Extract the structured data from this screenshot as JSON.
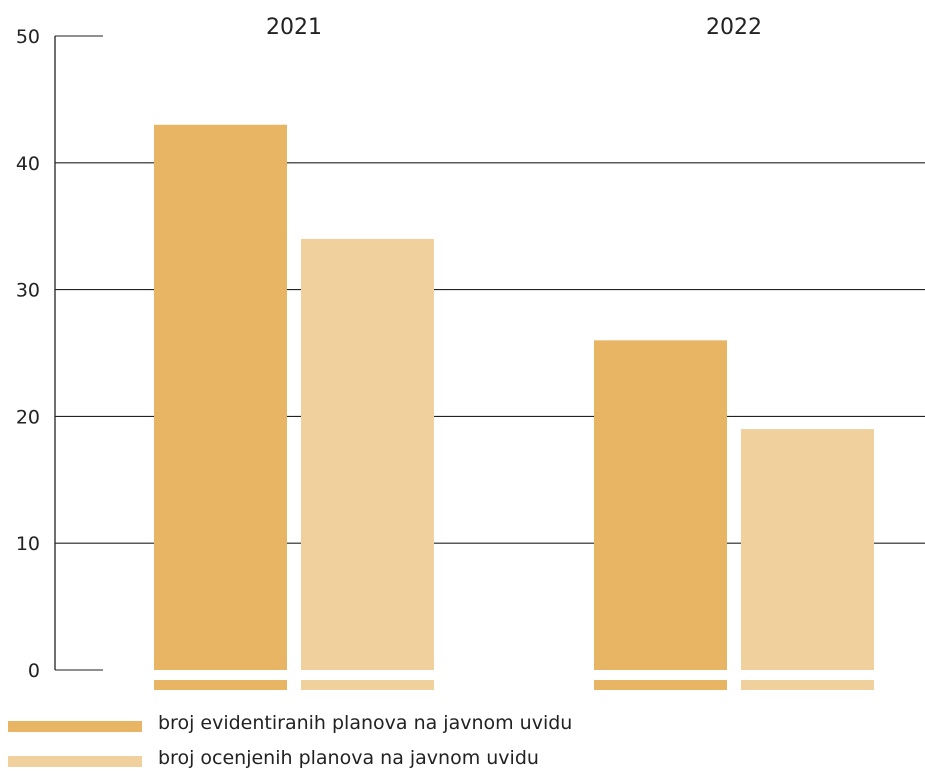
{
  "chart_data": {
    "type": "bar",
    "categories": [
      "2021",
      "2022"
    ],
    "series": [
      {
        "name": "broj evidentiranih planova na javnom uvidu",
        "values": [
          43,
          26
        ],
        "color": "#e8b565"
      },
      {
        "name": "broj ocenjenih planova na javnom uvidu",
        "values": [
          34,
          19
        ],
        "color": "#f0d19d"
      }
    ],
    "yticks": [
      "0",
      "10",
      "20",
      "30",
      "40",
      "50"
    ],
    "ylim": [
      0,
      50
    ],
    "grid": true,
    "legend": "bottom-left"
  }
}
